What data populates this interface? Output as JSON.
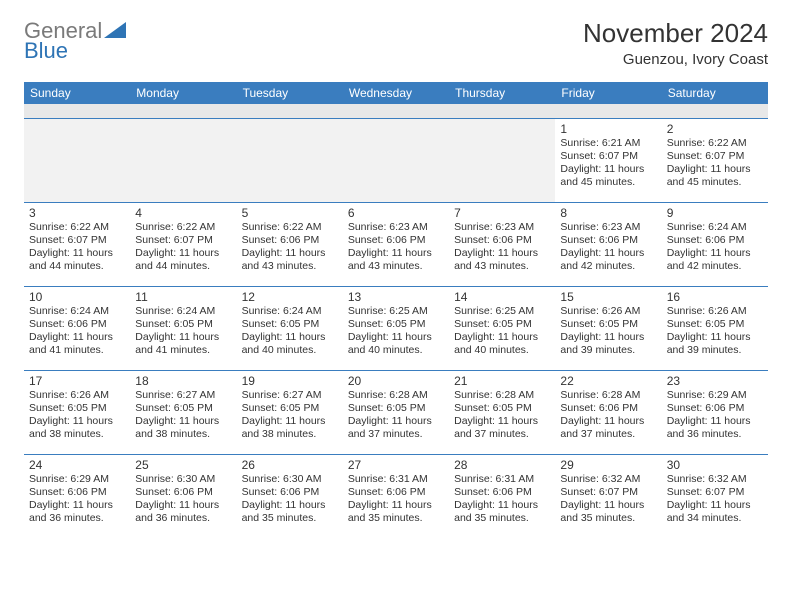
{
  "logo": {
    "gray": "General",
    "blue": "Blue"
  },
  "title": "November 2024",
  "location": "Guenzou, Ivory Coast",
  "header_bg": "#3a7dbf",
  "header_text_color": "#ffffff",
  "cell_text_color": "#333333",
  "border_color": "#3a7dbf",
  "spacer_bg": "#e8e8e8",
  "day_headers": [
    "Sunday",
    "Monday",
    "Tuesday",
    "Wednesday",
    "Thursday",
    "Friday",
    "Saturday"
  ],
  "weeks": [
    [
      null,
      null,
      null,
      null,
      null,
      {
        "n": "1",
        "sunrise": "6:21 AM",
        "sunset": "6:07 PM",
        "daylight": "11 hours and 45 minutes."
      },
      {
        "n": "2",
        "sunrise": "6:22 AM",
        "sunset": "6:07 PM",
        "daylight": "11 hours and 45 minutes."
      }
    ],
    [
      {
        "n": "3",
        "sunrise": "6:22 AM",
        "sunset": "6:07 PM",
        "daylight": "11 hours and 44 minutes."
      },
      {
        "n": "4",
        "sunrise": "6:22 AM",
        "sunset": "6:07 PM",
        "daylight": "11 hours and 44 minutes."
      },
      {
        "n": "5",
        "sunrise": "6:22 AM",
        "sunset": "6:06 PM",
        "daylight": "11 hours and 43 minutes."
      },
      {
        "n": "6",
        "sunrise": "6:23 AM",
        "sunset": "6:06 PM",
        "daylight": "11 hours and 43 minutes."
      },
      {
        "n": "7",
        "sunrise": "6:23 AM",
        "sunset": "6:06 PM",
        "daylight": "11 hours and 43 minutes."
      },
      {
        "n": "8",
        "sunrise": "6:23 AM",
        "sunset": "6:06 PM",
        "daylight": "11 hours and 42 minutes."
      },
      {
        "n": "9",
        "sunrise": "6:24 AM",
        "sunset": "6:06 PM",
        "daylight": "11 hours and 42 minutes."
      }
    ],
    [
      {
        "n": "10",
        "sunrise": "6:24 AM",
        "sunset": "6:06 PM",
        "daylight": "11 hours and 41 minutes."
      },
      {
        "n": "11",
        "sunrise": "6:24 AM",
        "sunset": "6:05 PM",
        "daylight": "11 hours and 41 minutes."
      },
      {
        "n": "12",
        "sunrise": "6:24 AM",
        "sunset": "6:05 PM",
        "daylight": "11 hours and 40 minutes."
      },
      {
        "n": "13",
        "sunrise": "6:25 AM",
        "sunset": "6:05 PM",
        "daylight": "11 hours and 40 minutes."
      },
      {
        "n": "14",
        "sunrise": "6:25 AM",
        "sunset": "6:05 PM",
        "daylight": "11 hours and 40 minutes."
      },
      {
        "n": "15",
        "sunrise": "6:26 AM",
        "sunset": "6:05 PM",
        "daylight": "11 hours and 39 minutes."
      },
      {
        "n": "16",
        "sunrise": "6:26 AM",
        "sunset": "6:05 PM",
        "daylight": "11 hours and 39 minutes."
      }
    ],
    [
      {
        "n": "17",
        "sunrise": "6:26 AM",
        "sunset": "6:05 PM",
        "daylight": "11 hours and 38 minutes."
      },
      {
        "n": "18",
        "sunrise": "6:27 AM",
        "sunset": "6:05 PM",
        "daylight": "11 hours and 38 minutes."
      },
      {
        "n": "19",
        "sunrise": "6:27 AM",
        "sunset": "6:05 PM",
        "daylight": "11 hours and 38 minutes."
      },
      {
        "n": "20",
        "sunrise": "6:28 AM",
        "sunset": "6:05 PM",
        "daylight": "11 hours and 37 minutes."
      },
      {
        "n": "21",
        "sunrise": "6:28 AM",
        "sunset": "6:05 PM",
        "daylight": "11 hours and 37 minutes."
      },
      {
        "n": "22",
        "sunrise": "6:28 AM",
        "sunset": "6:06 PM",
        "daylight": "11 hours and 37 minutes."
      },
      {
        "n": "23",
        "sunrise": "6:29 AM",
        "sunset": "6:06 PM",
        "daylight": "11 hours and 36 minutes."
      }
    ],
    [
      {
        "n": "24",
        "sunrise": "6:29 AM",
        "sunset": "6:06 PM",
        "daylight": "11 hours and 36 minutes."
      },
      {
        "n": "25",
        "sunrise": "6:30 AM",
        "sunset": "6:06 PM",
        "daylight": "11 hours and 36 minutes."
      },
      {
        "n": "26",
        "sunrise": "6:30 AM",
        "sunset": "6:06 PM",
        "daylight": "11 hours and 35 minutes."
      },
      {
        "n": "27",
        "sunrise": "6:31 AM",
        "sunset": "6:06 PM",
        "daylight": "11 hours and 35 minutes."
      },
      {
        "n": "28",
        "sunrise": "6:31 AM",
        "sunset": "6:06 PM",
        "daylight": "11 hours and 35 minutes."
      },
      {
        "n": "29",
        "sunrise": "6:32 AM",
        "sunset": "6:07 PM",
        "daylight": "11 hours and 35 minutes."
      },
      {
        "n": "30",
        "sunrise": "6:32 AM",
        "sunset": "6:07 PM",
        "daylight": "11 hours and 34 minutes."
      }
    ]
  ],
  "labels": {
    "sunrise": "Sunrise:",
    "sunset": "Sunset:",
    "daylight": "Daylight:"
  }
}
